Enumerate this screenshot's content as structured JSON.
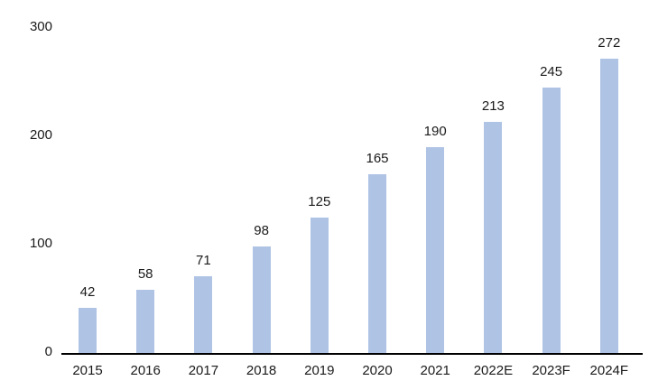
{
  "chart_data": {
    "type": "bar",
    "categories": [
      "2015",
      "2016",
      "2017",
      "2018",
      "2019",
      "2020",
      "2021",
      "2022E",
      "2023F",
      "2024F"
    ],
    "values": [
      42,
      58,
      71,
      98,
      125,
      165,
      190,
      213,
      245,
      272
    ],
    "title": "",
    "xlabel": "",
    "ylabel": "",
    "ylim": [
      0,
      300
    ],
    "yticks": [
      0,
      100,
      200,
      300
    ],
    "grid": false,
    "legend": false,
    "data_labels": true,
    "bar_color": "#afc3e5",
    "axis_line_color": "#000000",
    "text_color": "#1a1a1a"
  }
}
